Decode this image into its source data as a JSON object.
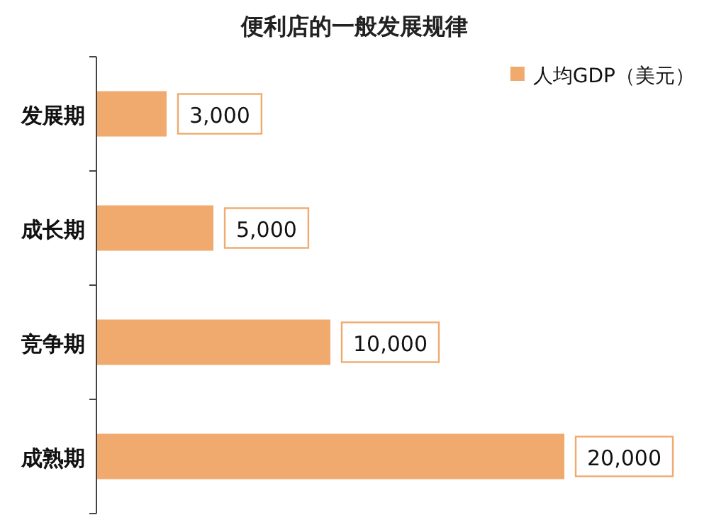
{
  "chart_data": {
    "type": "bar",
    "orientation": "horizontal",
    "title": "便利店的一般发展规律",
    "categories": [
      "发展期",
      "成长期",
      "竞争期",
      "成熟期"
    ],
    "series": [
      {
        "name": "人均GDP（美元）",
        "color": "#f0aa6e",
        "values": [
          3000,
          5000,
          10000,
          20000
        ],
        "value_labels": [
          "3,000",
          "5,000",
          "10,000",
          "20,000"
        ]
      }
    ],
    "legend": "top right"
  }
}
